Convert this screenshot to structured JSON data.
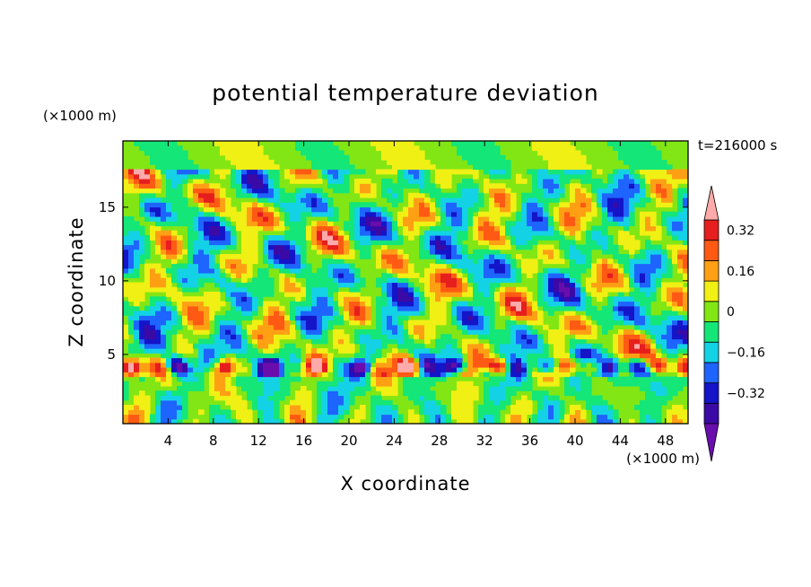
{
  "chart_data": {
    "type": "heatmap",
    "title": "potential temperature deviation",
    "xlabel": "X coordinate",
    "ylabel": "Z coordinate",
    "x_unit": "(×1000 m)",
    "y_unit": "(×1000 m)",
    "time_label": "t=216000 s",
    "xlim": [
      0,
      50
    ],
    "ylim": [
      0.3,
      19.5
    ],
    "x_ticks": [
      4,
      8,
      12,
      16,
      20,
      24,
      28,
      32,
      36,
      40,
      44,
      48
    ],
    "x_tick_labels": [
      "4",
      "8",
      "12",
      "16",
      "20",
      "24",
      "28",
      "32",
      "36",
      "40",
      "44",
      "48"
    ],
    "y_ticks": [
      5,
      10,
      15
    ],
    "y_tick_labels": [
      "5",
      "10",
      "15"
    ],
    "colorbar": {
      "levels": [
        -0.4,
        -0.32,
        -0.24,
        -0.16,
        -0.08,
        0,
        0.08,
        0.16,
        0.24,
        0.32,
        0.4
      ],
      "label_values": [
        0.32,
        0.16,
        0,
        -0.16,
        -0.32
      ],
      "labels": [
        "0.32",
        "0.16",
        "0",
        "−0.16",
        "−0.32"
      ],
      "colors": [
        "#6a0dad",
        "#3b0aa6",
        "#1414c8",
        "#1e64ff",
        "#14d2e6",
        "#14e678",
        "#82e614",
        "#f0f014",
        "#ffa014",
        "#ff5a14",
        "#e61e1e",
        "#ffaaaa"
      ],
      "extend": "both"
    },
    "grid": false
  }
}
